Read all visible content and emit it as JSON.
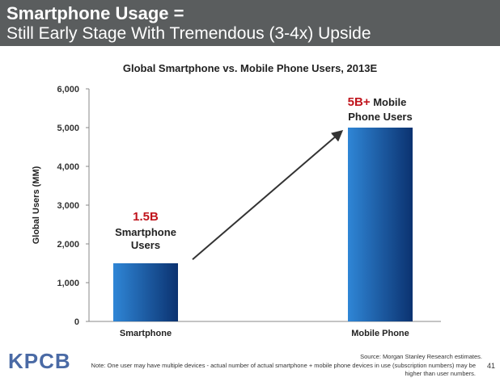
{
  "header": {
    "title_line1": "Smartphone Usage =",
    "title_line2": "Still Early Stage With Tremendous (3-4x) Upside"
  },
  "chart_data": {
    "type": "bar",
    "title": "Global Smartphone vs. Mobile Phone Users, 2013E",
    "categories": [
      "Smartphone",
      "Mobile Phone"
    ],
    "values": [
      1500,
      5000
    ],
    "ylabel": "Global Users (MM)",
    "xlabel": "",
    "ylim": [
      0,
      6000
    ],
    "yticks": [
      "0",
      "1,000",
      "2,000",
      "3,000",
      "4,000",
      "5,000",
      "6,000"
    ],
    "annotations": [
      {
        "highlight": "1.5B",
        "lines": [
          "Smartphone",
          "Users"
        ]
      },
      {
        "highlight": "5B+",
        "lines": [
          "Mobile",
          "Phone Users"
        ]
      }
    ],
    "arrow": "growth arrow from Smartphone bar to Mobile Phone bar",
    "grid": false,
    "colors": {
      "bar_light": "#2f86d6",
      "bar_dark": "#0b3270",
      "highlight": "#c0141c"
    }
  },
  "footer": {
    "logo": "KPCB",
    "source": "Source: Morgan Stanley Research estimates.",
    "note": "Note: One user may have multiple devices - actual number of actual smartphone + mobile phone devices in use (subscription numbers) may be higher than user numbers.",
    "page_number": "41"
  },
  "colors": {
    "header_bg": "#5a5d5e",
    "logo": "#4a6aa5"
  }
}
